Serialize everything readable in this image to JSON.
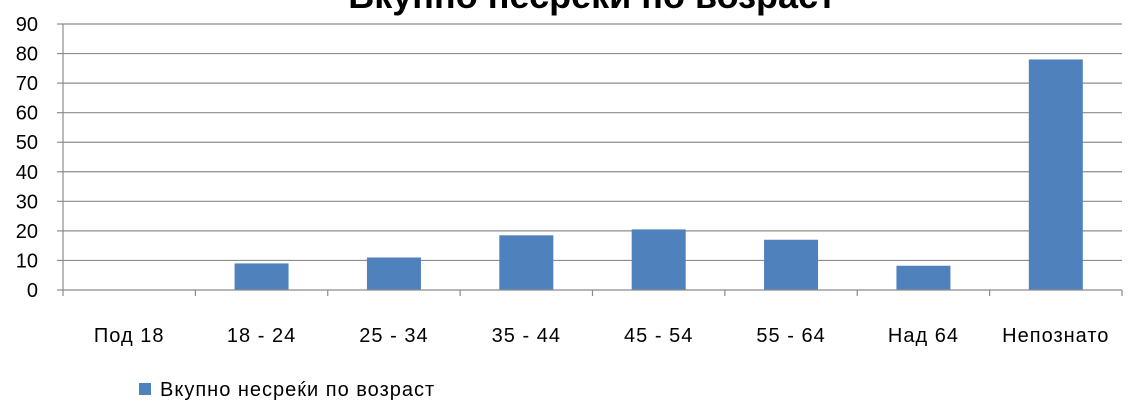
{
  "chart_data": {
    "type": "bar",
    "title": "Вкупно несреќи по возраст",
    "categories": [
      "Под 18",
      "18 - 24",
      "25 - 34",
      "35 - 44",
      "45 - 54",
      "55 - 64",
      "Над 64",
      "Непознато"
    ],
    "series": [
      {
        "name": "Вкупно несреќи по возраст",
        "values": [
          0,
          9,
          11,
          18.5,
          20.5,
          17,
          8.2,
          78
        ],
        "color": "#4f81bd"
      }
    ],
    "ylim": [
      0,
      90
    ],
    "yticks": [
      0,
      10,
      20,
      30,
      40,
      50,
      60,
      70,
      80,
      90
    ],
    "grid": true,
    "legend_position": "bottom-left"
  }
}
